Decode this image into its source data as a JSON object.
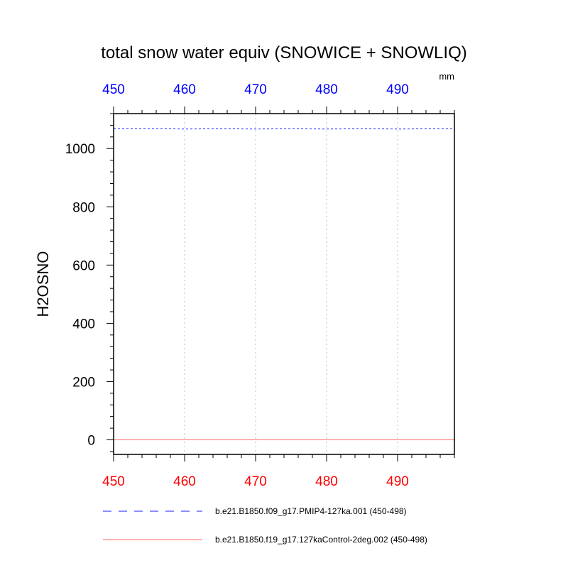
{
  "chart_data": {
    "type": "line",
    "title": "total snow water equiv (SNOWICE + SNOWLIQ)",
    "units": "mm",
    "xlabel": "",
    "ylabel": "H2OSNO",
    "xlim": [
      450,
      498
    ],
    "ylim": [
      -50,
      1120
    ],
    "x_ticks": [
      450,
      460,
      470,
      480,
      490
    ],
    "y_ticks": [
      0,
      200,
      400,
      600,
      800,
      1000
    ],
    "grid_x": true,
    "grid_y": false,
    "bottom_axis_color": "#ff0000",
    "top_axis_color": "#0000ff",
    "series": [
      {
        "name": "b.e21.B1850.f09_g17.PMIP4-127ka.001 (450-498)",
        "color": "#0000ff",
        "dash": "dashed",
        "x": [
          450,
          455,
          460,
          465,
          470,
          475,
          480,
          485,
          490,
          495,
          498
        ],
        "y": [
          1068,
          1069,
          1067,
          1068,
          1067,
          1068,
          1067,
          1068,
          1067,
          1068,
          1068
        ]
      },
      {
        "name": "b.e21.B1850.f19_g17.127kaControl-2deg.002 (450-498)",
        "color": "#ff0000",
        "dash": "solid",
        "x": [
          450,
          498
        ],
        "y": [
          0,
          0
        ]
      }
    ]
  }
}
